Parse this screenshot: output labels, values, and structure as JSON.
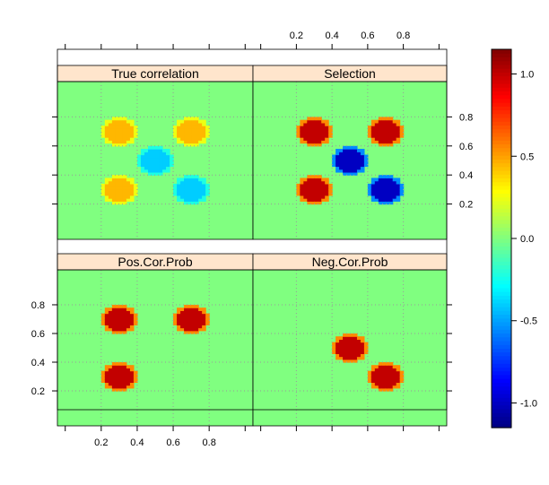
{
  "chart_data": {
    "type": "heatmap",
    "panels": [
      {
        "title": "True correlation",
        "blobs": [
          {
            "x": 0.3,
            "y": 0.7,
            "value": 0.45
          },
          {
            "x": 0.7,
            "y": 0.7,
            "value": 0.45
          },
          {
            "x": 0.5,
            "y": 0.5,
            "value": -0.4
          },
          {
            "x": 0.3,
            "y": 0.3,
            "value": 0.45
          },
          {
            "x": 0.7,
            "y": 0.3,
            "value": -0.4
          }
        ]
      },
      {
        "title": "Selection",
        "blobs": [
          {
            "x": 0.3,
            "y": 0.7,
            "value": 1.0
          },
          {
            "x": 0.7,
            "y": 0.7,
            "value": 1.0
          },
          {
            "x": 0.5,
            "y": 0.5,
            "value": -1.0
          },
          {
            "x": 0.3,
            "y": 0.3,
            "value": 1.0
          },
          {
            "x": 0.7,
            "y": 0.3,
            "value": -1.0
          }
        ]
      },
      {
        "title": "Pos.Cor.Prob",
        "blobs": [
          {
            "x": 0.3,
            "y": 0.7,
            "value": 1.0
          },
          {
            "x": 0.7,
            "y": 0.7,
            "value": 1.0
          },
          {
            "x": 0.3,
            "y": 0.3,
            "value": 1.0
          }
        ]
      },
      {
        "title": "Neg.Cor.Prob",
        "blobs": [
          {
            "x": 0.5,
            "y": 0.5,
            "value": 1.0
          },
          {
            "x": 0.7,
            "y": 0.3,
            "value": 1.0
          }
        ]
      }
    ],
    "xticks": [
      "0.2",
      "0.4",
      "0.6",
      "0.8"
    ],
    "yticks": [
      "0.2",
      "0.4",
      "0.6",
      "0.8"
    ],
    "colorbar_ticks": [
      "-1.0",
      "-0.5",
      "0.0",
      "0.5",
      "1.0"
    ],
    "xlim": [
      0,
      1
    ],
    "ylim": [
      0,
      1
    ],
    "zlim": [
      -1.15,
      1.15
    ],
    "grid": "dotted",
    "colors": {
      "strip_bg": "#ffe5cc",
      "background_value": 0.0
    }
  }
}
